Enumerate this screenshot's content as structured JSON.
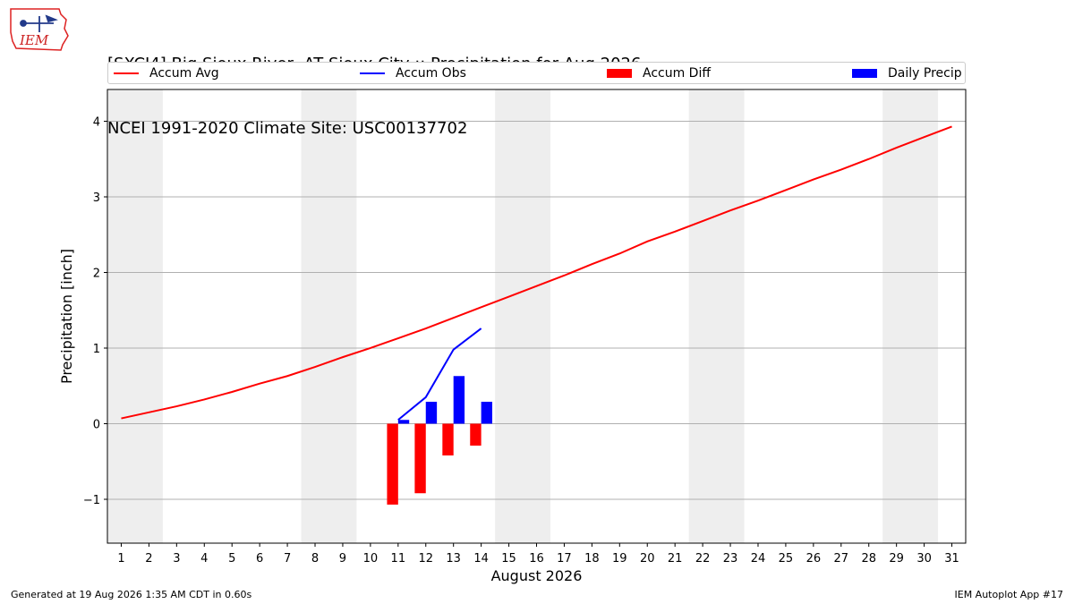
{
  "header": {
    "title_line1": "[SXCI4] Big Sioux River  AT Sioux City :: Precipitation for Aug 2026",
    "title_line2": "NCEI 1991-2020 Climate Site: USC00137702",
    "logo_text": "IEM"
  },
  "footer": {
    "left": "Generated at 19 Aug 2026 1:35 AM CDT in 0.60s",
    "right": "IEM Autoplot App #17"
  },
  "colors": {
    "avg": "#ff0000",
    "obs": "#0000ff",
    "diff": "#ff0000",
    "daily": "#0000ff",
    "weekend": "#eeeeee",
    "grid": "#b0b0b0"
  },
  "chart_data": {
    "type": "line",
    "xlabel": "August 2026",
    "ylabel": "Precipitation [inch]",
    "xlim": [
      0.5,
      31.5
    ],
    "ylim": [
      -1.58,
      4.42
    ],
    "yticks": [
      -1,
      0,
      1,
      2,
      3,
      4
    ],
    "ytick_labels": [
      "−1",
      "0",
      "1",
      "2",
      "3",
      "4"
    ],
    "x_categories": [
      "1",
      "2",
      "3",
      "4",
      "5",
      "6",
      "7",
      "8",
      "9",
      "10",
      "11",
      "12",
      "13",
      "14",
      "15",
      "16",
      "17",
      "18",
      "19",
      "20",
      "21",
      "22",
      "23",
      "24",
      "25",
      "26",
      "27",
      "28",
      "29",
      "30",
      "31"
    ],
    "weekend_days": [
      [
        1,
        2
      ],
      [
        8,
        9
      ],
      [
        15,
        16
      ],
      [
        22,
        23
      ],
      [
        29,
        30
      ]
    ],
    "legend_placement": "top, spanning plot width",
    "grid": "horizontal",
    "series": [
      {
        "name": "Accum Avg",
        "kind": "line",
        "x": [
          1,
          2,
          3,
          4,
          5,
          6,
          7,
          8,
          9,
          10,
          11,
          12,
          13,
          14,
          15,
          16,
          17,
          18,
          19,
          20,
          21,
          22,
          23,
          24,
          25,
          26,
          27,
          28,
          29,
          30,
          31
        ],
        "values": [
          0.07,
          0.15,
          0.23,
          0.32,
          0.42,
          0.53,
          0.63,
          0.75,
          0.88,
          1.0,
          1.13,
          1.26,
          1.4,
          1.54,
          1.68,
          1.82,
          1.96,
          2.11,
          2.25,
          2.41,
          2.54,
          2.68,
          2.82,
          2.95,
          3.09,
          3.23,
          3.36,
          3.5,
          3.65,
          3.79,
          3.93
        ]
      },
      {
        "name": "Accum Obs",
        "kind": "line",
        "x": [
          11,
          12,
          13,
          14
        ],
        "values": [
          0.05,
          0.35,
          0.98,
          1.26
        ]
      },
      {
        "name": "Accum Diff",
        "kind": "bar",
        "x": [
          11,
          12,
          13,
          14
        ],
        "values": [
          -1.07,
          -0.92,
          -0.42,
          -0.29
        ]
      },
      {
        "name": "Daily Precip",
        "kind": "bar",
        "x": [
          11,
          12,
          13,
          14
        ],
        "values": [
          0.05,
          0.29,
          0.63,
          0.29
        ]
      }
    ]
  }
}
